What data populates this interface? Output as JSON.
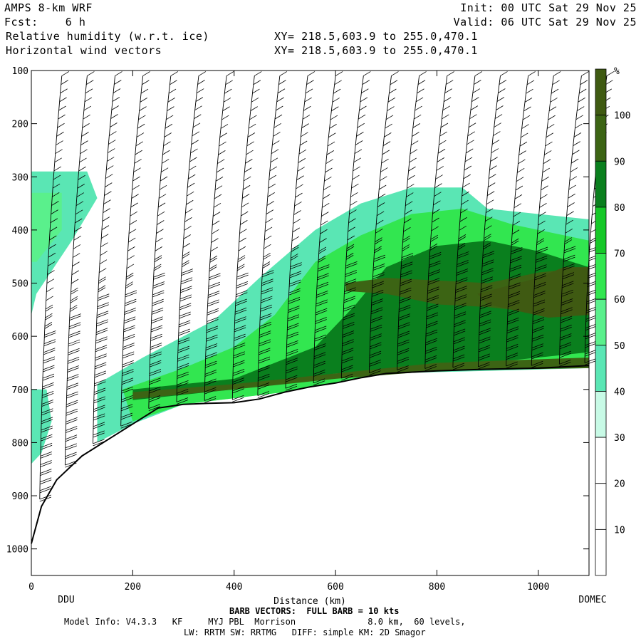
{
  "header": {
    "model": "AMPS 8-km WRF",
    "fcst_label": "Fcst:",
    "fcst_value": "6 h",
    "field1": "Relative humidity (w.r.t. ice)",
    "field2": "Horizontal wind vectors",
    "xy1": "XY= 218.5,603.9 to 255.0,470.1",
    "xy2": "XY= 218.5,603.9 to 255.0,470.1",
    "init": "Init: 00 UTC Sat 29 Nov 25",
    "valid": "Valid: 06 UTC Sat 29 Nov 25"
  },
  "chart_data": {
    "type": "heatmap",
    "title": "Relative humidity (w.r.t. ice)",
    "xlabel": "Distance (km)",
    "ylabel": "",
    "xlim": [
      0,
      1100
    ],
    "ylim": [
      1050,
      100
    ],
    "x_ticks": [
      0,
      200,
      400,
      600,
      800,
      1000
    ],
    "y_ticks": [
      100,
      200,
      300,
      400,
      500,
      600,
      700,
      800,
      900,
      1000
    ],
    "endpoints": {
      "left": "DDU",
      "right": "DOMEC"
    },
    "colorbar": {
      "unit": "%",
      "levels": [
        10,
        20,
        30,
        40,
        50,
        60,
        70,
        80,
        90,
        100
      ],
      "colors": [
        "#ffffff",
        "#ffffff",
        "#ffffff",
        "#c8fae6",
        "#5ae6b4",
        "#5af08c",
        "#32e650",
        "#16c828",
        "#0a7f1e",
        "#3c6414",
        "#3f5a12"
      ]
    },
    "terrain_pressure": [
      [
        0,
        990
      ],
      [
        20,
        920
      ],
      [
        50,
        870
      ],
      [
        100,
        825
      ],
      [
        150,
        795
      ],
      [
        200,
        765
      ],
      [
        250,
        735
      ],
      [
        300,
        728
      ],
      [
        350,
        726
      ],
      [
        400,
        725
      ],
      [
        450,
        718
      ],
      [
        500,
        705
      ],
      [
        550,
        695
      ],
      [
        600,
        688
      ],
      [
        650,
        678
      ],
      [
        700,
        670
      ],
      [
        800,
        665
      ],
      [
        900,
        662
      ],
      [
        1000,
        660
      ],
      [
        1100,
        655
      ]
    ],
    "rh_regions": [
      {
        "level": 40,
        "points": [
          [
            0,
            290
          ],
          [
            110,
            290
          ],
          [
            130,
            340
          ],
          [
            80,
            420
          ],
          [
            10,
            520
          ],
          [
            0,
            560
          ]
        ]
      },
      {
        "level": 50,
        "points": [
          [
            0,
            330
          ],
          [
            60,
            330
          ],
          [
            60,
            400
          ],
          [
            10,
            460
          ],
          [
            0,
            460
          ]
        ]
      },
      {
        "level": 40,
        "points": [
          [
            130,
            690
          ],
          [
            220,
            640
          ],
          [
            360,
            570
          ],
          [
            450,
            490
          ],
          [
            560,
            400
          ],
          [
            650,
            350
          ],
          [
            750,
            320
          ],
          [
            850,
            320
          ],
          [
            900,
            360
          ],
          [
            1100,
            380
          ],
          [
            1100,
            660
          ],
          [
            700,
            670
          ],
          [
            500,
            705
          ],
          [
            300,
            728
          ],
          [
            200,
            765
          ],
          [
            130,
            800
          ]
        ]
      },
      {
        "level": 60,
        "points": [
          [
            180,
            700
          ],
          [
            300,
            660
          ],
          [
            400,
            620
          ],
          [
            480,
            560
          ],
          [
            560,
            460
          ],
          [
            650,
            410
          ],
          [
            750,
            370
          ],
          [
            850,
            360
          ],
          [
            950,
            390
          ],
          [
            1100,
            420
          ],
          [
            1100,
            655
          ],
          [
            700,
            670
          ],
          [
            500,
            705
          ],
          [
            300,
            728
          ],
          [
            200,
            760
          ]
        ]
      },
      {
        "level": 80,
        "points": [
          [
            200,
            700
          ],
          [
            400,
            680
          ],
          [
            560,
            620
          ],
          [
            640,
            540
          ],
          [
            700,
            470
          ],
          [
            800,
            430
          ],
          [
            900,
            420
          ],
          [
            1000,
            440
          ],
          [
            1100,
            470
          ],
          [
            1100,
            630
          ],
          [
            1000,
            640
          ],
          [
            800,
            660
          ],
          [
            600,
            670
          ],
          [
            400,
            700
          ],
          [
            200,
            720
          ]
        ]
      },
      {
        "level": 90,
        "points": [
          [
            200,
            705
          ],
          [
            400,
            690
          ],
          [
            600,
            670
          ],
          [
            800,
            650
          ],
          [
            1100,
            640
          ],
          [
            1100,
            660
          ],
          [
            800,
            665
          ],
          [
            600,
            680
          ],
          [
            400,
            700
          ],
          [
            200,
            718
          ]
        ]
      },
      {
        "level": 90,
        "points": [
          [
            620,
            500
          ],
          [
            700,
            490
          ],
          [
            800,
            495
          ],
          [
            900,
            500
          ],
          [
            1000,
            480
          ],
          [
            1100,
            470
          ],
          [
            1100,
            560
          ],
          [
            1000,
            555
          ],
          [
            900,
            545
          ],
          [
            800,
            540
          ],
          [
            700,
            520
          ],
          [
            620,
            515
          ]
        ]
      },
      {
        "level": 100,
        "points": [
          [
            880,
            520
          ],
          [
            1000,
            490
          ],
          [
            1050,
            470
          ],
          [
            1100,
            470
          ],
          [
            1100,
            560
          ],
          [
            1020,
            565
          ],
          [
            900,
            540
          ]
        ]
      },
      {
        "level": 40,
        "points": [
          [
            0,
            700
          ],
          [
            30,
            700
          ],
          [
            40,
            760
          ],
          [
            20,
            820
          ],
          [
            0,
            840
          ]
        ]
      }
    ],
    "barb_columns_km": [
      25,
      75,
      130,
      185,
      240,
      295,
      350,
      405,
      455,
      510,
      565,
      620,
      675,
      730,
      785,
      840,
      890,
      945,
      995,
      1050,
      1100
    ]
  },
  "footer": {
    "barb_note": "BARB VECTORS:  FULL BARB = 10 kts",
    "model_info": "Model Info: V4.3.3   KF     MYJ PBL  Morrison              8.0 km,  60 levels,",
    "physics": "LW: RRTM SW: RRTMG   DIFF: simple KM: 2D Smagor"
  }
}
